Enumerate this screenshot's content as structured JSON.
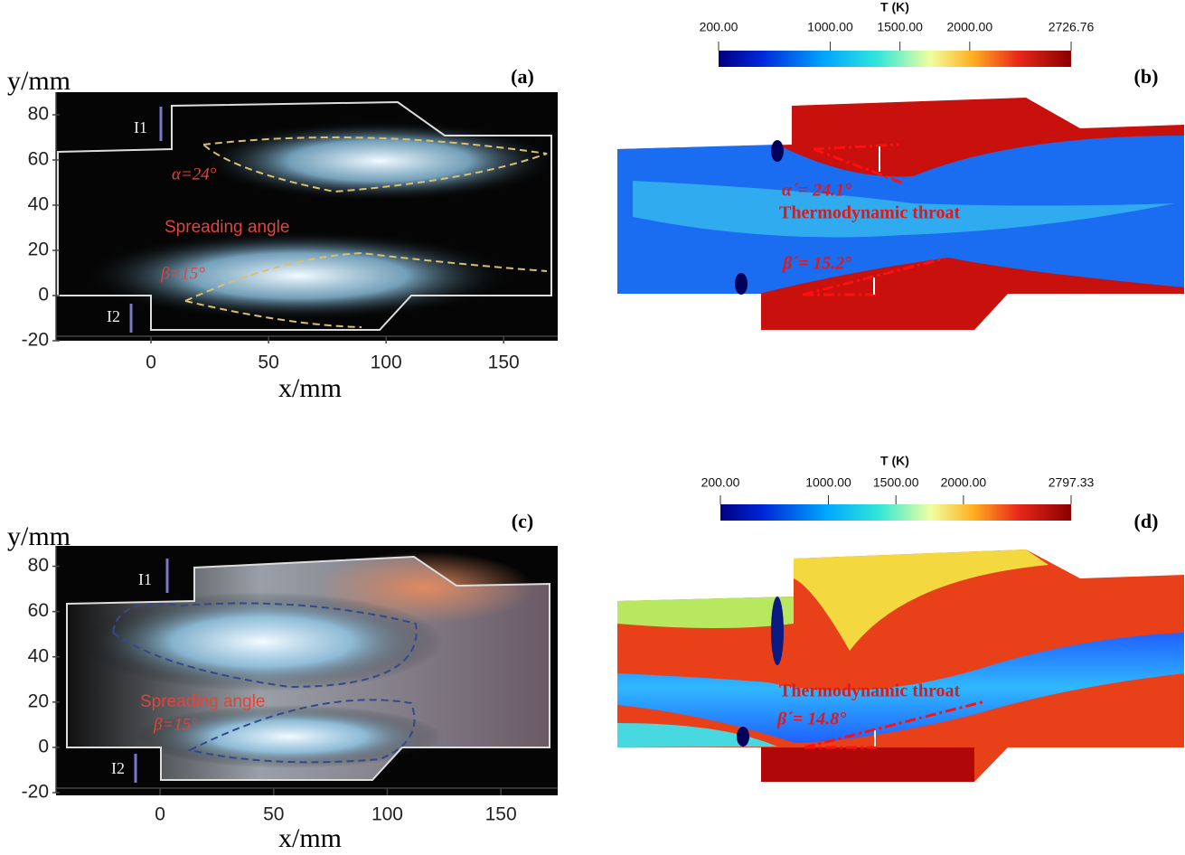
{
  "panels": [
    {
      "label": "(a)",
      "y_label": "y/mm",
      "x_label": "x/mm",
      "xlim": [
        -40.4,
        173
      ],
      "ylim": [
        -20,
        90
      ],
      "xticks": [
        0,
        50,
        100,
        150
      ],
      "yticks": [
        -20,
        0,
        20,
        40,
        60,
        80
      ],
      "inlets": [
        "I1",
        "I2"
      ],
      "annotations": [
        "α=24°",
        "Spreading angle",
        "β=15°"
      ]
    },
    {
      "label": "(b)",
      "colorbar": {
        "title": "T (K)",
        "range": [
          200,
          2726.76
        ],
        "ticks": [
          {
            "value": 200,
            "label": "200.00"
          },
          {
            "value": 1000,
            "label": "1000.00"
          },
          {
            "value": 1500,
            "label": "1500.00"
          },
          {
            "value": 2000,
            "label": "2000.00"
          },
          {
            "value": 2726.76,
            "label": "2726.76"
          }
        ]
      },
      "annotations": [
        "α´= 24.1°",
        "Thermodynamic throat",
        "β´= 15.2°"
      ]
    },
    {
      "label": "(c)",
      "y_label": "y/mm",
      "x_label": "x/mm",
      "xlim": [
        -45.8,
        175
      ],
      "ylim": [
        -20,
        89
      ],
      "xticks": [
        0,
        50,
        100,
        150
      ],
      "yticks": [
        -20,
        0,
        20,
        40,
        60,
        80
      ],
      "inlets": [
        "I1",
        "I2"
      ],
      "annotations": [
        "Spreading angle",
        "β=15°"
      ]
    },
    {
      "label": "(d)",
      "colorbar": {
        "title": "T (K)",
        "range": [
          200,
          2797.33
        ],
        "ticks": [
          {
            "value": 200,
            "label": "200.00"
          },
          {
            "value": 1000,
            "label": "1000.00"
          },
          {
            "value": 1500,
            "label": "1500.00"
          },
          {
            "value": 2000,
            "label": "2000.00"
          },
          {
            "value": 2797.33,
            "label": "2797.33"
          }
        ]
      },
      "annotations": [
        "Thermodynamic throat",
        "β´= 14.8°"
      ]
    }
  ]
}
